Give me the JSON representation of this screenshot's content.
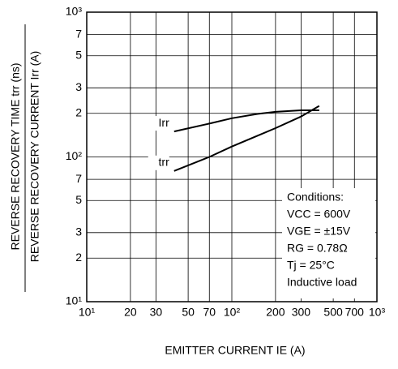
{
  "chart_data": {
    "type": "line",
    "xlabel": "EMITTER CURRENT  IE (A)",
    "ylabel": [
      "REVERSE RECOVERY TIME  trr (ns)",
      "REVERSE RECOVERY CURRENT  Irr (A)"
    ],
    "xlog": true,
    "ylog": true,
    "grid": true,
    "xlim": [
      10,
      1000
    ],
    "ylim": [
      10,
      1000
    ],
    "xticks": [
      {
        "value": 10,
        "label": "10¹"
      },
      20,
      30,
      50,
      70,
      {
        "value": 100,
        "label": "10²"
      },
      200,
      300,
      500,
      700,
      {
        "value": 1000,
        "label": "10³"
      }
    ],
    "yticks": [
      {
        "value": 10,
        "label": "10¹"
      },
      2,
      3,
      5,
      7,
      {
        "value": 100,
        "label": "10²"
      },
      7,
      5,
      3,
      2,
      {
        "value": 1000,
        "label": "10³"
      }
    ],
    "series": [
      {
        "name": "Irr",
        "color": "#000000",
        "x": [
          40,
          70,
          100,
          150,
          200,
          300,
          400
        ],
        "values": [
          150,
          170,
          185,
          198,
          205,
          210,
          210
        ]
      },
      {
        "name": "trr",
        "color": "#000000",
        "x": [
          40,
          70,
          100,
          150,
          200,
          300,
          400
        ],
        "values": [
          80,
          100,
          118,
          140,
          158,
          190,
          225
        ]
      }
    ],
    "annotations": [
      "Conditions:",
      "VCC = 600V",
      "VGE = ±15V",
      "RG = 0.78Ω",
      "Tj = 25°C",
      "Inductive load"
    ]
  }
}
